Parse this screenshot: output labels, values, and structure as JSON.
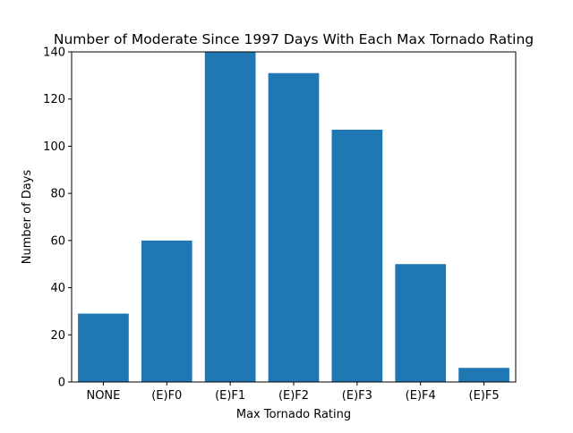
{
  "chart_data": {
    "type": "bar",
    "title": "Number of Moderate Since 1997 Days With Each Max Tornado Rating",
    "xlabel": "Max Tornado Rating",
    "ylabel": "Number of Days",
    "categories": [
      "NONE",
      "(E)F0",
      "(E)F1",
      "(E)F2",
      "(E)F3",
      "(E)F4",
      "(E)F5"
    ],
    "values": [
      29,
      60,
      140,
      131,
      107,
      50,
      6
    ],
    "ylim": [
      0,
      140
    ],
    "yticks": [
      0,
      20,
      40,
      60,
      80,
      100,
      120,
      140
    ],
    "grid": false,
    "legend": "none",
    "bar_color": "#1f77b4"
  }
}
